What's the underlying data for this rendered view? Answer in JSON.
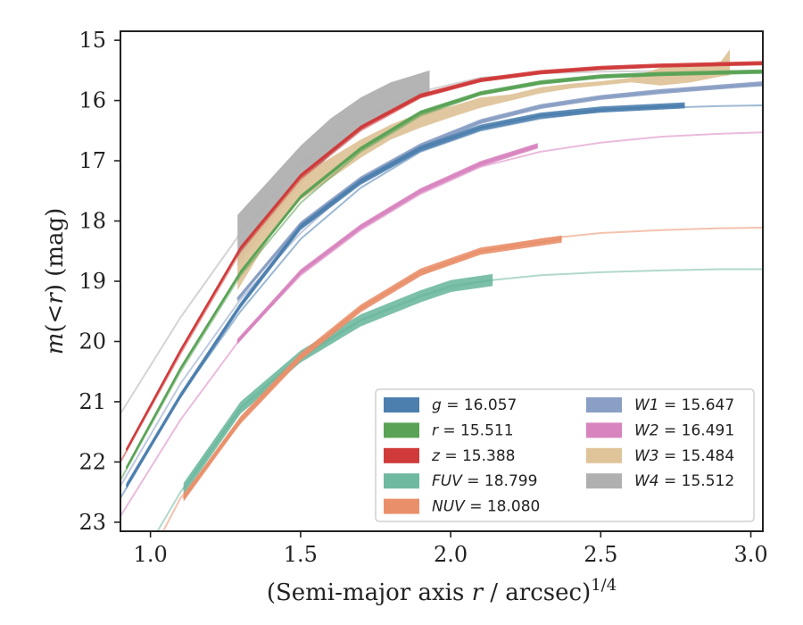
{
  "chart_data": {
    "type": "line",
    "title": "",
    "xlabel": "(Semi-major axis r / arcsec)^1/4",
    "ylabel": "m(<r) (mag)",
    "xlim": [
      0.9,
      3.04
    ],
    "ylim": [
      23.15,
      14.85
    ],
    "y_inverted": true,
    "grid": false,
    "legend_position": "lower-right",
    "x_ticks": [
      1.0,
      1.5,
      2.0,
      2.5,
      3.0
    ],
    "x_tick_labels": [
      "1.0",
      "1.5",
      "2.0",
      "2.5",
      "3.0"
    ],
    "y_ticks": [
      15,
      16,
      17,
      18,
      19,
      20,
      21,
      22,
      23
    ],
    "y_tick_labels": [
      "15",
      "16",
      "17",
      "18",
      "19",
      "20",
      "21",
      "22",
      "23"
    ],
    "series": [
      {
        "name": "g = 16.057",
        "label_var": "g",
        "label_val": "16.057",
        "color": "#4c7fae",
        "model": [
          [
            0.9,
            22.6
          ],
          [
            1.1,
            20.9
          ],
          [
            1.3,
            19.5
          ],
          [
            1.5,
            18.3
          ],
          [
            1.7,
            17.45
          ],
          [
            1.9,
            16.85
          ],
          [
            2.1,
            16.5
          ],
          [
            2.3,
            16.3
          ],
          [
            2.5,
            16.18
          ],
          [
            2.7,
            16.12
          ],
          [
            2.9,
            16.09
          ],
          [
            3.04,
            16.08
          ]
        ],
        "data": [
          [
            0.92,
            22.4
          ],
          [
            1.1,
            20.9
          ],
          [
            1.3,
            19.4
          ],
          [
            1.5,
            18.1
          ],
          [
            1.7,
            17.35
          ],
          [
            1.9,
            16.8
          ],
          [
            2.1,
            16.45
          ],
          [
            2.3,
            16.25
          ],
          [
            2.5,
            16.15
          ],
          [
            2.78,
            16.08
          ]
        ],
        "band": 0.1
      },
      {
        "name": "r = 15.511",
        "label_var": "r",
        "label_val": "15.511",
        "color": "#5aa356",
        "model": [
          [
            0.9,
            22.3
          ],
          [
            1.1,
            20.5
          ],
          [
            1.3,
            18.9
          ],
          [
            1.5,
            17.7
          ],
          [
            1.7,
            16.85
          ],
          [
            1.9,
            16.25
          ],
          [
            2.1,
            15.9
          ],
          [
            2.3,
            15.72
          ],
          [
            2.5,
            15.62
          ],
          [
            2.7,
            15.57
          ],
          [
            2.9,
            15.54
          ],
          [
            3.04,
            15.53
          ]
        ],
        "data": [
          [
            0.92,
            22.1
          ],
          [
            1.1,
            20.45
          ],
          [
            1.3,
            18.85
          ],
          [
            1.5,
            17.6
          ],
          [
            1.7,
            16.8
          ],
          [
            1.9,
            16.2
          ],
          [
            2.1,
            15.88
          ],
          [
            2.3,
            15.7
          ],
          [
            2.5,
            15.6
          ],
          [
            2.7,
            15.56
          ],
          [
            3.04,
            15.52
          ]
        ],
        "band": 0.07
      },
      {
        "name": "z = 15.388",
        "label_var": "z",
        "label_val": "15.388",
        "color": "#d03a3a",
        "model": [
          [
            0.9,
            22.0
          ],
          [
            1.1,
            20.2
          ],
          [
            1.3,
            18.5
          ],
          [
            1.5,
            17.3
          ],
          [
            1.7,
            16.5
          ],
          [
            1.9,
            15.95
          ],
          [
            2.1,
            15.68
          ],
          [
            2.3,
            15.55
          ],
          [
            2.5,
            15.47
          ],
          [
            2.7,
            15.43
          ],
          [
            2.9,
            15.4
          ],
          [
            3.04,
            15.39
          ]
        ],
        "data": [
          [
            0.92,
            21.8
          ],
          [
            1.1,
            20.15
          ],
          [
            1.3,
            18.45
          ],
          [
            1.5,
            17.25
          ],
          [
            1.7,
            16.45
          ],
          [
            1.9,
            15.92
          ],
          [
            2.1,
            15.66
          ],
          [
            2.3,
            15.53
          ],
          [
            2.5,
            15.46
          ],
          [
            2.7,
            15.42
          ],
          [
            3.04,
            15.38
          ]
        ],
        "band": 0.07
      },
      {
        "name": "FUV = 18.799",
        "label_var": "FUV",
        "label_val": "18.799",
        "color": "#6fb9a0",
        "model": [
          [
            0.9,
            24.2
          ],
          [
            1.1,
            22.5
          ],
          [
            1.3,
            21.15
          ],
          [
            1.5,
            20.3
          ],
          [
            1.7,
            19.65
          ],
          [
            1.9,
            19.25
          ],
          [
            2.1,
            19.0
          ],
          [
            2.3,
            18.9
          ],
          [
            2.5,
            18.85
          ],
          [
            2.7,
            18.82
          ],
          [
            2.9,
            18.8
          ],
          [
            3.04,
            18.8
          ]
        ],
        "data": [
          [
            1.11,
            22.45
          ],
          [
            1.3,
            21.1
          ],
          [
            1.5,
            20.25
          ],
          [
            1.7,
            19.65
          ],
          [
            1.9,
            19.25
          ],
          [
            2.0,
            19.08
          ],
          [
            2.14,
            18.98
          ]
        ],
        "band": 0.2
      },
      {
        "name": "NUV = 18.080",
        "label_var": "NUV",
        "label_val": "18.080",
        "color": "#e9906b",
        "model": [
          [
            0.9,
            24.5
          ],
          [
            1.1,
            22.6
          ],
          [
            1.3,
            21.35
          ],
          [
            1.5,
            20.3
          ],
          [
            1.7,
            19.5
          ],
          [
            1.9,
            18.9
          ],
          [
            2.1,
            18.5
          ],
          [
            2.3,
            18.3
          ],
          [
            2.5,
            18.2
          ],
          [
            2.7,
            18.15
          ],
          [
            2.9,
            18.12
          ],
          [
            3.04,
            18.11
          ]
        ],
        "data": [
          [
            1.11,
            22.6
          ],
          [
            1.3,
            21.3
          ],
          [
            1.5,
            20.25
          ],
          [
            1.7,
            19.45
          ],
          [
            1.9,
            18.85
          ],
          [
            2.1,
            18.5
          ],
          [
            2.37,
            18.3
          ]
        ],
        "band": 0.12
      },
      {
        "name": "W1 = 15.647",
        "label_var": "W1",
        "label_val": "15.647",
        "color": "#8a9fc4",
        "model": [
          [
            0.9,
            22.4
          ],
          [
            1.1,
            20.7
          ],
          [
            1.3,
            19.3
          ],
          [
            1.5,
            18.2
          ],
          [
            1.7,
            17.3
          ],
          [
            1.9,
            16.75
          ],
          [
            2.1,
            16.35
          ],
          [
            2.3,
            16.1
          ],
          [
            2.5,
            15.95
          ],
          [
            2.7,
            15.85
          ],
          [
            2.9,
            15.78
          ],
          [
            3.04,
            15.75
          ]
        ],
        "data": [
          [
            1.29,
            19.3
          ],
          [
            1.5,
            18.05
          ],
          [
            1.7,
            17.3
          ],
          [
            1.9,
            16.75
          ],
          [
            2.1,
            16.35
          ],
          [
            2.3,
            16.1
          ],
          [
            2.5,
            15.95
          ],
          [
            2.7,
            15.85
          ],
          [
            3.04,
            15.72
          ]
        ],
        "band": 0.08
      },
      {
        "name": "W2 = 16.491",
        "label_var": "W2",
        "label_val": "16.491",
        "color": "#d884bf",
        "model": [
          [
            0.9,
            22.9
          ],
          [
            1.1,
            21.3
          ],
          [
            1.3,
            19.95
          ],
          [
            1.5,
            18.9
          ],
          [
            1.7,
            18.15
          ],
          [
            1.9,
            17.55
          ],
          [
            2.1,
            17.1
          ],
          [
            2.3,
            16.85
          ],
          [
            2.5,
            16.7
          ],
          [
            2.7,
            16.6
          ],
          [
            2.9,
            16.55
          ],
          [
            3.04,
            16.53
          ]
        ],
        "data": [
          [
            1.29,
            20.0
          ],
          [
            1.5,
            18.85
          ],
          [
            1.7,
            18.1
          ],
          [
            1.9,
            17.5
          ],
          [
            2.1,
            17.05
          ],
          [
            2.29,
            16.75
          ]
        ],
        "band": 0.09
      },
      {
        "name": "W3 = 15.484",
        "label_var": "W3",
        "label_val": "15.484",
        "color": "#dfc49a",
        "band_top": [
          [
            1.29,
            18.6
          ],
          [
            1.4,
            17.85
          ],
          [
            1.5,
            17.25
          ],
          [
            1.6,
            16.95
          ],
          [
            1.7,
            16.65
          ],
          [
            1.8,
            16.4
          ],
          [
            1.9,
            16.2
          ],
          [
            2.0,
            16.1
          ],
          [
            2.1,
            15.95
          ],
          [
            2.2,
            15.9
          ],
          [
            2.3,
            15.78
          ],
          [
            2.4,
            15.72
          ],
          [
            2.5,
            15.68
          ],
          [
            2.6,
            15.62
          ],
          [
            2.7,
            15.45
          ],
          [
            2.8,
            15.42
          ],
          [
            2.9,
            15.35
          ],
          [
            2.93,
            15.15
          ]
        ],
        "band_bottom": [
          [
            1.29,
            19.15
          ],
          [
            1.4,
            18.25
          ],
          [
            1.5,
            17.65
          ],
          [
            1.6,
            17.3
          ],
          [
            1.7,
            16.95
          ],
          [
            1.8,
            16.65
          ],
          [
            1.9,
            16.45
          ],
          [
            2.0,
            16.28
          ],
          [
            2.1,
            16.12
          ],
          [
            2.2,
            16.0
          ],
          [
            2.3,
            15.88
          ],
          [
            2.4,
            15.8
          ],
          [
            2.5,
            15.75
          ],
          [
            2.6,
            15.7
          ],
          [
            2.7,
            15.75
          ],
          [
            2.8,
            15.7
          ],
          [
            2.9,
            15.6
          ],
          [
            2.93,
            15.58
          ]
        ]
      },
      {
        "name": "W4 = 15.512",
        "label_var": "W4",
        "label_val": "15.512",
        "color": "#b0b0b0",
        "model": [
          [
            0.9,
            21.2
          ],
          [
            1.1,
            19.6
          ],
          [
            1.3,
            18.2
          ],
          [
            1.5,
            17.05
          ],
          [
            1.7,
            16.3
          ],
          [
            1.9,
            15.85
          ],
          [
            2.1,
            15.62
          ],
          [
            2.3,
            15.55
          ],
          [
            2.5,
            15.52
          ],
          [
            2.7,
            15.51
          ],
          [
            3.04,
            15.51
          ]
        ],
        "band_top": [
          [
            1.29,
            17.9
          ],
          [
            1.4,
            17.3
          ],
          [
            1.5,
            16.75
          ],
          [
            1.6,
            16.3
          ],
          [
            1.7,
            15.95
          ],
          [
            1.8,
            15.7
          ],
          [
            1.93,
            15.5
          ]
        ],
        "band_bottom": [
          [
            1.29,
            18.75
          ],
          [
            1.4,
            18.0
          ],
          [
            1.5,
            17.4
          ],
          [
            1.6,
            16.9
          ],
          [
            1.7,
            16.5
          ],
          [
            1.8,
            16.15
          ],
          [
            1.93,
            15.9
          ]
        ]
      }
    ]
  }
}
